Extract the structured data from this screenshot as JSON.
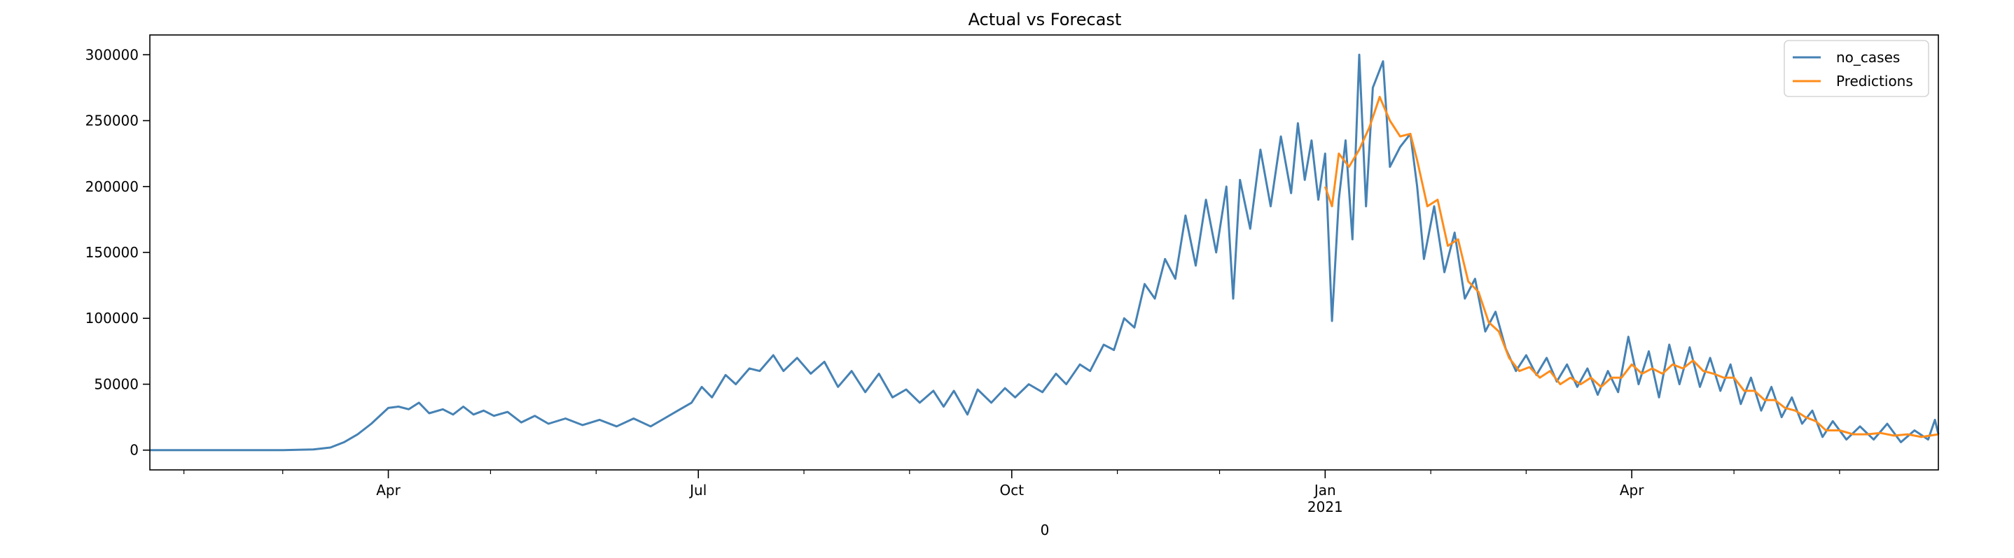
{
  "chart_data": {
    "type": "line",
    "title": "Actual vs Forecast",
    "xlabel": "0",
    "ylabel": "",
    "x_range": [
      "2020-01-22",
      "2021-06-30"
    ],
    "ylim": [
      -15000,
      315000
    ],
    "y_ticks": [
      {
        "value": 0,
        "label": "0"
      },
      {
        "value": 50000,
        "label": "50000"
      },
      {
        "value": 100000,
        "label": "100000"
      },
      {
        "value": 150000,
        "label": "150000"
      },
      {
        "value": 200000,
        "label": "200000"
      },
      {
        "value": 250000,
        "label": "250000"
      },
      {
        "value": 300000,
        "label": "300000"
      }
    ],
    "x_ticks": [
      {
        "date": "2020-04-01",
        "label": "Apr",
        "sublabel": ""
      },
      {
        "date": "2020-07-01",
        "label": "Jul",
        "sublabel": ""
      },
      {
        "date": "2020-10-01",
        "label": "Oct",
        "sublabel": ""
      },
      {
        "date": "2021-01-01",
        "label": "Jan",
        "sublabel": "2021"
      },
      {
        "date": "2021-04-01",
        "label": "Apr",
        "sublabel": ""
      }
    ],
    "minor_x_ticks": [
      "2020-02-01",
      "2020-03-01",
      "2020-05-01",
      "2020-06-01",
      "2020-08-01",
      "2020-09-01",
      "2020-11-01",
      "2020-12-01",
      "2021-02-01",
      "2021-03-01",
      "2021-05-01",
      "2021-06-01"
    ],
    "grid": false,
    "legend_position": "upper right",
    "series": [
      {
        "name": "no_cases",
        "color": "#4682b4",
        "points": [
          [
            "2020-01-22",
            0
          ],
          [
            "2020-03-01",
            0
          ],
          [
            "2020-03-10",
            500
          ],
          [
            "2020-03-15",
            2000
          ],
          [
            "2020-03-19",
            6000
          ],
          [
            "2020-03-23",
            12000
          ],
          [
            "2020-03-27",
            20000
          ],
          [
            "2020-04-01",
            32000
          ],
          [
            "2020-04-04",
            33000
          ],
          [
            "2020-04-07",
            31000
          ],
          [
            "2020-04-10",
            36000
          ],
          [
            "2020-04-13",
            28000
          ],
          [
            "2020-04-17",
            31000
          ],
          [
            "2020-04-20",
            27000
          ],
          [
            "2020-04-23",
            33000
          ],
          [
            "2020-04-26",
            27000
          ],
          [
            "2020-04-29",
            30000
          ],
          [
            "2020-05-02",
            26000
          ],
          [
            "2020-05-06",
            29000
          ],
          [
            "2020-05-10",
            21000
          ],
          [
            "2020-05-14",
            26000
          ],
          [
            "2020-05-18",
            20000
          ],
          [
            "2020-05-23",
            24000
          ],
          [
            "2020-05-28",
            19000
          ],
          [
            "2020-06-02",
            23000
          ],
          [
            "2020-06-07",
            18000
          ],
          [
            "2020-06-12",
            24000
          ],
          [
            "2020-06-17",
            18000
          ],
          [
            "2020-06-21",
            24000
          ],
          [
            "2020-06-25",
            30000
          ],
          [
            "2020-06-29",
            36000
          ],
          [
            "2020-07-02",
            48000
          ],
          [
            "2020-07-05",
            40000
          ],
          [
            "2020-07-09",
            57000
          ],
          [
            "2020-07-12",
            50000
          ],
          [
            "2020-07-16",
            62000
          ],
          [
            "2020-07-19",
            60000
          ],
          [
            "2020-07-23",
            72000
          ],
          [
            "2020-07-26",
            60000
          ],
          [
            "2020-07-30",
            70000
          ],
          [
            "2020-08-03",
            58000
          ],
          [
            "2020-08-07",
            67000
          ],
          [
            "2020-08-11",
            48000
          ],
          [
            "2020-08-15",
            60000
          ],
          [
            "2020-08-19",
            44000
          ],
          [
            "2020-08-23",
            58000
          ],
          [
            "2020-08-27",
            40000
          ],
          [
            "2020-08-31",
            46000
          ],
          [
            "2020-09-04",
            36000
          ],
          [
            "2020-09-08",
            45000
          ],
          [
            "2020-09-11",
            33000
          ],
          [
            "2020-09-14",
            45000
          ],
          [
            "2020-09-18",
            27000
          ],
          [
            "2020-09-21",
            46000
          ],
          [
            "2020-09-25",
            36000
          ],
          [
            "2020-09-29",
            47000
          ],
          [
            "2020-10-02",
            40000
          ],
          [
            "2020-10-06",
            50000
          ],
          [
            "2020-10-10",
            44000
          ],
          [
            "2020-10-14",
            58000
          ],
          [
            "2020-10-17",
            50000
          ],
          [
            "2020-10-21",
            65000
          ],
          [
            "2020-10-24",
            60000
          ],
          [
            "2020-10-28",
            80000
          ],
          [
            "2020-10-31",
            76000
          ],
          [
            "2020-11-03",
            100000
          ],
          [
            "2020-11-06",
            93000
          ],
          [
            "2020-11-09",
            126000
          ],
          [
            "2020-11-12",
            115000
          ],
          [
            "2020-11-15",
            145000
          ],
          [
            "2020-11-18",
            130000
          ],
          [
            "2020-11-21",
            178000
          ],
          [
            "2020-11-24",
            140000
          ],
          [
            "2020-11-27",
            190000
          ],
          [
            "2020-11-30",
            150000
          ],
          [
            "2020-12-03",
            200000
          ],
          [
            "2020-12-05",
            115000
          ],
          [
            "2020-12-07",
            205000
          ],
          [
            "2020-12-10",
            168000
          ],
          [
            "2020-12-13",
            228000
          ],
          [
            "2020-12-16",
            185000
          ],
          [
            "2020-12-19",
            238000
          ],
          [
            "2020-12-22",
            195000
          ],
          [
            "2020-12-24",
            248000
          ],
          [
            "2020-12-26",
            205000
          ],
          [
            "2020-12-28",
            235000
          ],
          [
            "2020-12-30",
            190000
          ],
          [
            "2021-01-01",
            225000
          ],
          [
            "2021-01-03",
            98000
          ],
          [
            "2021-01-05",
            190000
          ],
          [
            "2021-01-07",
            235000
          ],
          [
            "2021-01-09",
            160000
          ],
          [
            "2021-01-11",
            300000
          ],
          [
            "2021-01-13",
            185000
          ],
          [
            "2021-01-15",
            275000
          ],
          [
            "2021-01-18",
            295000
          ],
          [
            "2021-01-20",
            215000
          ],
          [
            "2021-01-23",
            230000
          ],
          [
            "2021-01-26",
            240000
          ],
          [
            "2021-01-28",
            200000
          ],
          [
            "2021-01-30",
            145000
          ],
          [
            "2021-02-02",
            185000
          ],
          [
            "2021-02-05",
            135000
          ],
          [
            "2021-02-08",
            165000
          ],
          [
            "2021-02-11",
            115000
          ],
          [
            "2021-02-14",
            130000
          ],
          [
            "2021-02-17",
            90000
          ],
          [
            "2021-02-20",
            105000
          ],
          [
            "2021-02-23",
            77000
          ],
          [
            "2021-02-26",
            60000
          ],
          [
            "2021-03-01",
            72000
          ],
          [
            "2021-03-04",
            57000
          ],
          [
            "2021-03-07",
            70000
          ],
          [
            "2021-03-10",
            52000
          ],
          [
            "2021-03-13",
            65000
          ],
          [
            "2021-03-16",
            48000
          ],
          [
            "2021-03-19",
            62000
          ],
          [
            "2021-03-22",
            42000
          ],
          [
            "2021-03-25",
            60000
          ],
          [
            "2021-03-28",
            44000
          ],
          [
            "2021-03-31",
            86000
          ],
          [
            "2021-04-03",
            50000
          ],
          [
            "2021-04-06",
            75000
          ],
          [
            "2021-04-09",
            40000
          ],
          [
            "2021-04-12",
            80000
          ],
          [
            "2021-04-15",
            50000
          ],
          [
            "2021-04-18",
            78000
          ],
          [
            "2021-04-21",
            48000
          ],
          [
            "2021-04-24",
            70000
          ],
          [
            "2021-04-27",
            45000
          ],
          [
            "2021-04-30",
            65000
          ],
          [
            "2021-05-03",
            35000
          ],
          [
            "2021-05-06",
            55000
          ],
          [
            "2021-05-09",
            30000
          ],
          [
            "2021-05-12",
            48000
          ],
          [
            "2021-05-15",
            25000
          ],
          [
            "2021-05-18",
            40000
          ],
          [
            "2021-05-21",
            20000
          ],
          [
            "2021-05-24",
            30000
          ],
          [
            "2021-05-27",
            10000
          ],
          [
            "2021-05-30",
            22000
          ],
          [
            "2021-06-03",
            8000
          ],
          [
            "2021-06-07",
            18000
          ],
          [
            "2021-06-11",
            8000
          ],
          [
            "2021-06-15",
            20000
          ],
          [
            "2021-06-19",
            6000
          ],
          [
            "2021-06-23",
            15000
          ],
          [
            "2021-06-27",
            8000
          ],
          [
            "2021-06-29",
            23000
          ],
          [
            "2021-06-30",
            12000
          ]
        ]
      },
      {
        "name": "Predictions",
        "color": "#ff8c1a",
        "points": [
          [
            "2021-01-01",
            200000
          ],
          [
            "2021-01-03",
            185000
          ],
          [
            "2021-01-05",
            225000
          ],
          [
            "2021-01-08",
            215000
          ],
          [
            "2021-01-11",
            228000
          ],
          [
            "2021-01-14",
            245000
          ],
          [
            "2021-01-17",
            268000
          ],
          [
            "2021-01-20",
            250000
          ],
          [
            "2021-01-23",
            238000
          ],
          [
            "2021-01-26",
            240000
          ],
          [
            "2021-01-28",
            220000
          ],
          [
            "2021-01-31",
            185000
          ],
          [
            "2021-02-03",
            190000
          ],
          [
            "2021-02-06",
            155000
          ],
          [
            "2021-02-09",
            160000
          ],
          [
            "2021-02-12",
            128000
          ],
          [
            "2021-02-15",
            120000
          ],
          [
            "2021-02-18",
            97000
          ],
          [
            "2021-02-21",
            90000
          ],
          [
            "2021-02-24",
            70000
          ],
          [
            "2021-02-27",
            60000
          ],
          [
            "2021-03-02",
            63000
          ],
          [
            "2021-03-05",
            55000
          ],
          [
            "2021-03-08",
            60000
          ],
          [
            "2021-03-11",
            50000
          ],
          [
            "2021-03-14",
            55000
          ],
          [
            "2021-03-17",
            50000
          ],
          [
            "2021-03-20",
            55000
          ],
          [
            "2021-03-23",
            48000
          ],
          [
            "2021-03-26",
            55000
          ],
          [
            "2021-03-29",
            55000
          ],
          [
            "2021-04-01",
            65000
          ],
          [
            "2021-04-04",
            58000
          ],
          [
            "2021-04-07",
            62000
          ],
          [
            "2021-04-10",
            58000
          ],
          [
            "2021-04-13",
            65000
          ],
          [
            "2021-04-16",
            62000
          ],
          [
            "2021-04-19",
            68000
          ],
          [
            "2021-04-22",
            60000
          ],
          [
            "2021-04-25",
            58000
          ],
          [
            "2021-04-28",
            55000
          ],
          [
            "2021-05-01",
            55000
          ],
          [
            "2021-05-04",
            45000
          ],
          [
            "2021-05-07",
            45000
          ],
          [
            "2021-05-10",
            38000
          ],
          [
            "2021-05-13",
            38000
          ],
          [
            "2021-05-16",
            32000
          ],
          [
            "2021-05-19",
            30000
          ],
          [
            "2021-05-22",
            25000
          ],
          [
            "2021-05-25",
            22000
          ],
          [
            "2021-05-28",
            15000
          ],
          [
            "2021-06-01",
            15000
          ],
          [
            "2021-06-05",
            12000
          ],
          [
            "2021-06-09",
            12000
          ],
          [
            "2021-06-13",
            13000
          ],
          [
            "2021-06-17",
            11000
          ],
          [
            "2021-06-21",
            12000
          ],
          [
            "2021-06-25",
            10000
          ],
          [
            "2021-06-30",
            12000
          ]
        ]
      }
    ]
  }
}
